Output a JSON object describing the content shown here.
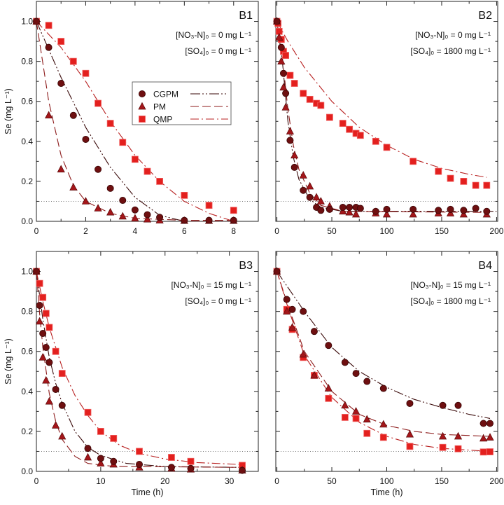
{
  "chart_data": [
    {
      "type": "scatter",
      "panel_label": "B1",
      "conditions": [
        "[NO₃-N]₀ = 0 mg L⁻¹",
        "[SO₄]₀ = 0 mg L⁻¹"
      ],
      "xlabel": "",
      "ylabel": "Se (mg L⁻¹)",
      "xlim": [
        0,
        9
      ],
      "ylim": [
        0,
        1.1
      ],
      "xticks": [
        0,
        2,
        4,
        6,
        8
      ],
      "xminor": [
        1,
        3,
        5,
        7,
        9
      ],
      "yticks": [
        0,
        0.2,
        0.4,
        0.6,
        0.8,
        1.0
      ],
      "ytick_labels": [
        "0.0",
        "0.2",
        "0.4",
        "0.6",
        "0.8",
        "1.0"
      ],
      "threshold": 0.1,
      "show_legend": true,
      "series": [
        {
          "name": "CGPM",
          "x": [
            0,
            0.5,
            1,
            1.5,
            2,
            2.5,
            3,
            3.5,
            4,
            4.5,
            5,
            6,
            7,
            8
          ],
          "y": [
            1,
            0.87,
            0.69,
            0.53,
            0.41,
            0.26,
            0.165,
            0.105,
            0.057,
            0.033,
            0.02,
            0.005,
            0.005,
            0.005
          ],
          "fit": [
            [
              0,
              1
            ],
            [
              1,
              0.72
            ],
            [
              2,
              0.47
            ],
            [
              3,
              0.27
            ],
            [
              4,
              0.12
            ],
            [
              5,
              0.03
            ],
            [
              6,
              0
            ],
            [
              8,
              0
            ]
          ]
        },
        {
          "name": "PM",
          "x": [
            0,
            0.5,
            1,
            1.5,
            2,
            2.5,
            3,
            3.5,
            4,
            4.5,
            5,
            6,
            7,
            8
          ],
          "y": [
            1,
            0.53,
            0.26,
            0.17,
            0.1,
            0.065,
            0.045,
            0.025,
            0.015,
            0.01,
            0.005,
            0.003,
            0.003,
            0.003
          ],
          "fit": [
            [
              0,
              1
            ],
            [
              0.5,
              0.6
            ],
            [
              1,
              0.33
            ],
            [
              1.5,
              0.18
            ],
            [
              2,
              0.1
            ],
            [
              3,
              0.04
            ],
            [
              4,
              0.015
            ],
            [
              6,
              0.005
            ],
            [
              8,
              0.005
            ]
          ]
        },
        {
          "name": "QMP",
          "x": [
            0,
            0.5,
            1,
            1.5,
            2,
            2.5,
            3,
            3.5,
            4,
            4.5,
            5,
            6,
            7,
            8
          ],
          "y": [
            1,
            0.98,
            0.9,
            0.8,
            0.74,
            0.59,
            0.49,
            0.395,
            0.31,
            0.25,
            0.2,
            0.13,
            0.08,
            0.055
          ],
          "fit": [
            [
              0,
              1
            ],
            [
              1,
              0.87
            ],
            [
              2,
              0.7
            ],
            [
              3,
              0.5
            ],
            [
              4,
              0.33
            ],
            [
              5,
              0.2
            ],
            [
              6,
              0.1
            ],
            [
              7,
              0.04
            ],
            [
              8,
              0
            ]
          ]
        }
      ]
    },
    {
      "type": "scatter",
      "panel_label": "B2",
      "conditions": [
        "[NO₃-N]₀ = 0 mg L⁻¹",
        "[SO₄]₀ = 1800 mg L⁻¹"
      ],
      "xlabel": "",
      "ylabel": "",
      "xlim": [
        -1,
        201
      ],
      "ylim": [
        0,
        1.1
      ],
      "xticks": [
        0,
        50,
        100,
        150,
        200
      ],
      "xminor": [
        25,
        75,
        125,
        175
      ],
      "yticks": [
        0,
        0.2,
        0.4,
        0.6,
        0.8,
        1.0
      ],
      "ytick_labels": [],
      "threshold": 0.1,
      "show_legend": false,
      "series": [
        {
          "name": "CGPM",
          "x": [
            0,
            4,
            6,
            8,
            12,
            16,
            24,
            30,
            36,
            40,
            48,
            60,
            66,
            72,
            76,
            90,
            100,
            124,
            147,
            158,
            170,
            181,
            191
          ],
          "y": [
            1,
            0.87,
            0.74,
            0.64,
            0.405,
            0.27,
            0.155,
            0.12,
            0.07,
            0.055,
            0.06,
            0.07,
            0.07,
            0.07,
            0.065,
            0.05,
            0.06,
            0.06,
            0.055,
            0.06,
            0.055,
            0.065,
            0.05
          ],
          "fit": [
            [
              0,
              1
            ],
            [
              5,
              0.8
            ],
            [
              10,
              0.5
            ],
            [
              15,
              0.32
            ],
            [
              20,
              0.21
            ],
            [
              30,
              0.11
            ],
            [
              40,
              0.07
            ],
            [
              60,
              0.05
            ],
            [
              200,
              0.05
            ]
          ]
        },
        {
          "name": "PM",
          "x": [
            0,
            2,
            4,
            6,
            8,
            12,
            16,
            24,
            30,
            36,
            40,
            48,
            60,
            66,
            72,
            90,
            100,
            124,
            147,
            158,
            170,
            191
          ],
          "y": [
            1,
            0.92,
            0.8,
            0.67,
            0.57,
            0.45,
            0.33,
            0.23,
            0.175,
            0.12,
            0.1,
            0.075,
            0.05,
            0.045,
            0.035,
            0.04,
            0.035,
            0.035,
            0.04,
            0.04,
            0.035,
            0.035
          ],
          "fit": [
            [
              0,
              1
            ],
            [
              5,
              0.82
            ],
            [
              10,
              0.56
            ],
            [
              15,
              0.38
            ],
            [
              20,
              0.26
            ],
            [
              30,
              0.14
            ],
            [
              40,
              0.08
            ],
            [
              60,
              0.05
            ],
            [
              191,
              0.045
            ]
          ]
        },
        {
          "name": "QMP",
          "x": [
            0,
            1,
            2,
            4,
            6,
            8,
            12,
            16,
            24,
            30,
            36,
            40,
            48,
            60,
            66,
            72,
            76,
            90,
            100,
            124,
            147,
            158,
            170,
            181,
            191
          ],
          "y": [
            1,
            0.99,
            0.95,
            0.91,
            0.85,
            0.83,
            0.73,
            0.69,
            0.64,
            0.61,
            0.59,
            0.58,
            0.52,
            0.49,
            0.46,
            0.44,
            0.43,
            0.4,
            0.37,
            0.3,
            0.25,
            0.215,
            0.2,
            0.18,
            0.18
          ],
          "fit": [
            [
              0,
              1
            ],
            [
              10,
              0.9
            ],
            [
              25,
              0.77
            ],
            [
              50,
              0.6
            ],
            [
              75,
              0.47
            ],
            [
              100,
              0.38
            ],
            [
              125,
              0.31
            ],
            [
              150,
              0.265
            ],
            [
              175,
              0.235
            ],
            [
              191,
              0.22
            ]
          ]
        }
      ]
    },
    {
      "type": "scatter",
      "panel_label": "B3",
      "conditions": [
        "[NO₃-N]₀ = 15 mg L⁻¹",
        "[SO₄]₀ = 0 mg L⁻¹"
      ],
      "xlabel": "Time (h)",
      "ylabel": "Se (mg L⁻¹)",
      "xlim": [
        0,
        34.5
      ],
      "ylim": [
        0,
        1.1
      ],
      "xticks": [
        0,
        10,
        20,
        30
      ],
      "xminor": [
        5,
        15,
        25
      ],
      "yticks": [
        0,
        0.2,
        0.4,
        0.6,
        0.8,
        1.0
      ],
      "ytick_labels": [
        "0.0",
        "0.2",
        "0.4",
        "0.6",
        "0.8",
        "1.0"
      ],
      "threshold": 0.1,
      "show_legend": false,
      "series": [
        {
          "name": "CGPM",
          "x": [
            0,
            0.5,
            1,
            1.5,
            2,
            3,
            4,
            8,
            10,
            12,
            16,
            21,
            24,
            32
          ],
          "y": [
            1,
            0.83,
            0.69,
            0.62,
            0.545,
            0.41,
            0.33,
            0.115,
            0.065,
            0.05,
            0.035,
            0.02,
            0.015,
            0.005
          ],
          "fit": [
            [
              0,
              1
            ],
            [
              1,
              0.76
            ],
            [
              2,
              0.57
            ],
            [
              3,
              0.44
            ],
            [
              4,
              0.34
            ],
            [
              6,
              0.2
            ],
            [
              8,
              0.12
            ],
            [
              10,
              0.08
            ],
            [
              14,
              0.04
            ],
            [
              20,
              0.024
            ],
            [
              32,
              0.02
            ]
          ]
        },
        {
          "name": "PM",
          "x": [
            0,
            0.5,
            1,
            1.5,
            2,
            3,
            4,
            8,
            10,
            12,
            16,
            21,
            24,
            32
          ],
          "y": [
            1,
            0.75,
            0.57,
            0.455,
            0.35,
            0.23,
            0.175,
            0.07,
            0.04,
            0.035,
            0.02,
            0.015,
            0.01,
            0.005
          ],
          "fit": [
            [
              0,
              1
            ],
            [
              0.5,
              0.79
            ],
            [
              1,
              0.62
            ],
            [
              2,
              0.39
            ],
            [
              3,
              0.25
            ],
            [
              4,
              0.16
            ],
            [
              6,
              0.075
            ],
            [
              8,
              0.04
            ],
            [
              12,
              0.025
            ],
            [
              32,
              0.02
            ]
          ]
        },
        {
          "name": "QMP",
          "x": [
            0,
            0.5,
            1,
            1.5,
            2,
            3,
            4,
            8,
            10,
            12,
            16,
            21,
            24,
            32
          ],
          "y": [
            1,
            0.94,
            0.87,
            0.79,
            0.72,
            0.6,
            0.49,
            0.295,
            0.2,
            0.165,
            0.1,
            0.07,
            0.05,
            0.03
          ],
          "fit": [
            [
              0,
              1
            ],
            [
              1,
              0.85
            ],
            [
              2,
              0.72
            ],
            [
              4,
              0.52
            ],
            [
              6,
              0.38
            ],
            [
              8,
              0.28
            ],
            [
              10,
              0.2
            ],
            [
              13,
              0.13
            ],
            [
              16,
              0.09
            ],
            [
              20,
              0.062
            ],
            [
              25,
              0.044
            ],
            [
              32,
              0.034
            ]
          ]
        }
      ]
    },
    {
      "type": "scatter",
      "panel_label": "B4",
      "conditions": [
        "[NO₃-N]₀ = 15 mg L⁻¹",
        "[SO₄]₀ = 1800 mg L⁻¹"
      ],
      "xlabel": "Time (h)",
      "ylabel": "",
      "xlim": [
        -1,
        201
      ],
      "ylim": [
        0,
        1.1
      ],
      "xticks": [
        0,
        50,
        100,
        150,
        200
      ],
      "xminor": [
        25,
        75,
        125,
        175
      ],
      "yticks": [
        0,
        0.2,
        0.4,
        0.6,
        0.8,
        1.0
      ],
      "ytick_labels": [],
      "threshold": 0.1,
      "show_legend": false,
      "series": [
        {
          "name": "CGPM",
          "x": [
            0,
            9,
            14,
            24,
            34,
            47,
            62,
            72,
            82,
            97,
            121,
            151,
            165,
            188,
            194
          ],
          "y": [
            1,
            0.86,
            0.81,
            0.8,
            0.7,
            0.63,
            0.545,
            0.49,
            0.45,
            0.415,
            0.34,
            0.33,
            0.33,
            0.24,
            0.24
          ],
          "fit": [
            [
              0,
              1
            ],
            [
              25,
              0.8
            ],
            [
              50,
              0.62
            ],
            [
              75,
              0.5
            ],
            [
              100,
              0.42
            ],
            [
              125,
              0.36
            ],
            [
              150,
              0.32
            ],
            [
              175,
              0.285
            ],
            [
              194,
              0.265
            ]
          ]
        },
        {
          "name": "PM",
          "x": [
            0,
            9,
            14,
            24,
            34,
            47,
            62,
            72,
            82,
            97,
            121,
            151,
            165,
            188,
            194
          ],
          "y": [
            1,
            0.8,
            0.72,
            0.585,
            0.48,
            0.415,
            0.33,
            0.3,
            0.26,
            0.235,
            0.185,
            0.175,
            0.175,
            0.165,
            0.17
          ],
          "fit": [
            [
              0,
              1
            ],
            [
              10,
              0.83
            ],
            [
              25,
              0.6
            ],
            [
              50,
              0.4
            ],
            [
              75,
              0.285
            ],
            [
              100,
              0.23
            ],
            [
              125,
              0.2
            ],
            [
              150,
              0.185
            ],
            [
              194,
              0.175
            ]
          ]
        },
        {
          "name": "QMP",
          "x": [
            0,
            9,
            14,
            24,
            34,
            47,
            62,
            72,
            82,
            97,
            121,
            151,
            165,
            188,
            194
          ],
          "y": [
            1,
            0.81,
            0.71,
            0.57,
            0.48,
            0.365,
            0.27,
            0.265,
            0.19,
            0.17,
            0.125,
            0.12,
            0.113,
            0.097,
            0.098
          ],
          "fit": [
            [
              0,
              1
            ],
            [
              10,
              0.82
            ],
            [
              25,
              0.58
            ],
            [
              50,
              0.37
            ],
            [
              75,
              0.245
            ],
            [
              100,
              0.175
            ],
            [
              125,
              0.135
            ],
            [
              150,
              0.115
            ],
            [
              194,
              0.1
            ]
          ]
        }
      ]
    }
  ],
  "legend": {
    "entries": [
      "CGPM",
      "PM",
      "QMP"
    ],
    "placement": "upper-middle of panel B1"
  },
  "styles": {
    "CGPM": {
      "marker": "circle",
      "color": "#6e0f10",
      "line": "#3a0a0a",
      "dash": "14 3 2 3 2 3"
    },
    "PM": {
      "marker": "triangle",
      "color": "#a3161a",
      "line": "#8c1a1a",
      "dash": "12 5"
    },
    "QMP": {
      "marker": "square",
      "color": "#e3201e",
      "line": "#b82020",
      "dash": "12 4 2 4"
    }
  }
}
